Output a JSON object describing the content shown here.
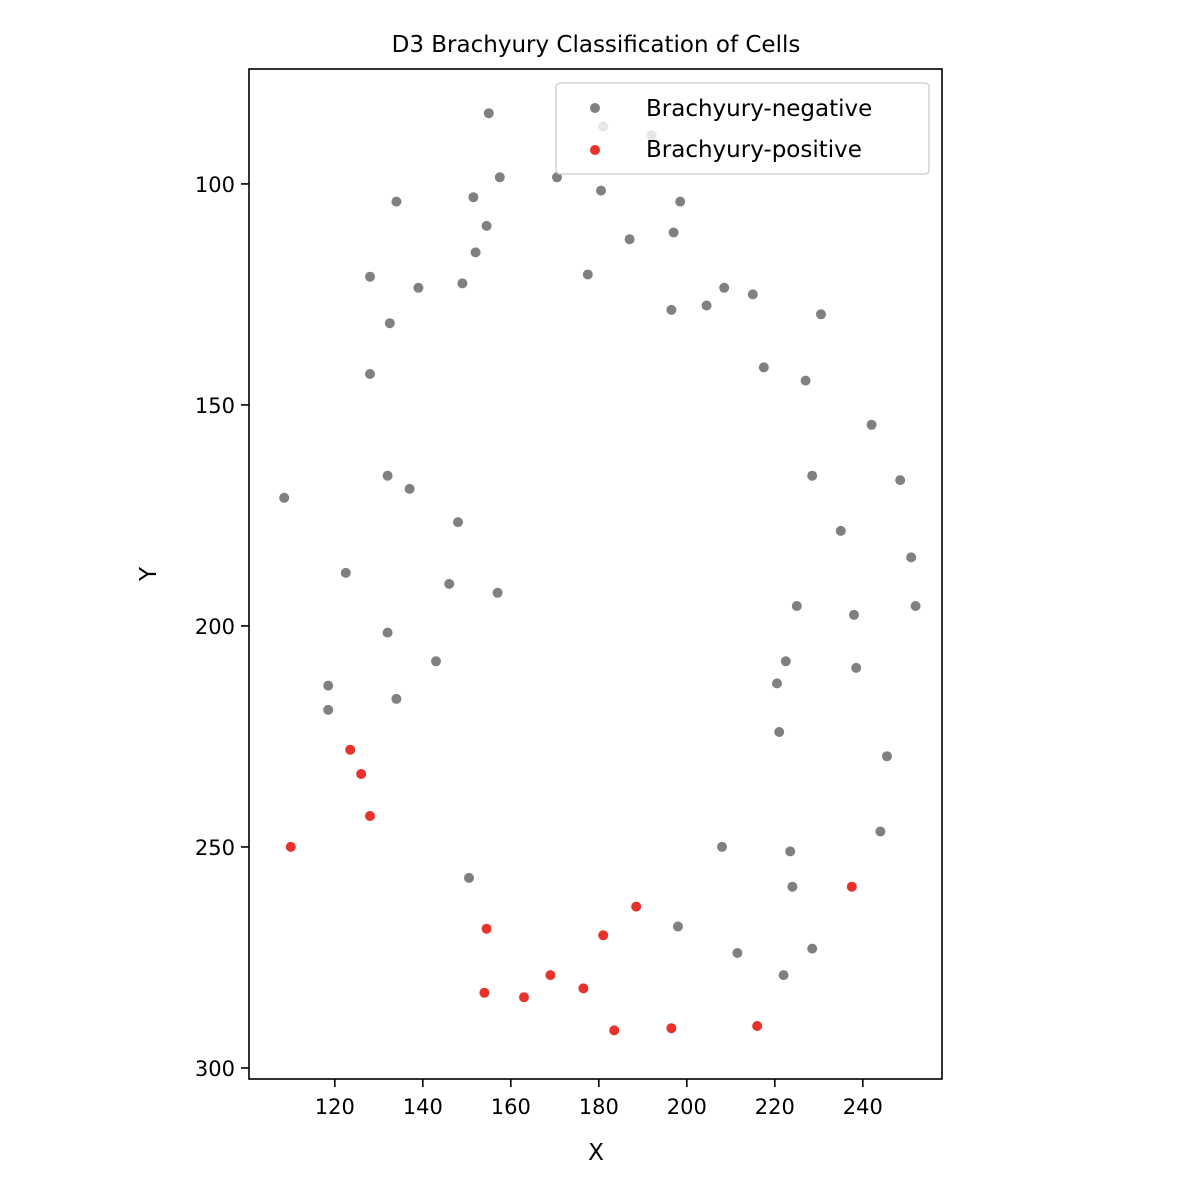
{
  "chart_data": {
    "type": "scatter",
    "title": "D3 Brachyury Classification of Cells",
    "xlabel": "X",
    "ylabel": "Y",
    "xlim": [
      100.5,
      258
    ],
    "ylim": [
      302.5,
      74
    ],
    "y_inverted": true,
    "xticks": [
      120,
      140,
      160,
      180,
      200,
      220,
      240
    ],
    "yticks": [
      100,
      150,
      200,
      250,
      300
    ],
    "grid": false,
    "legend_position": "top-right",
    "series": [
      {
        "name": "Brachyury-negative",
        "color": "#808080",
        "points": [
          [
            155,
            84
          ],
          [
            181,
            87
          ],
          [
            192,
            89
          ],
          [
            157.5,
            98.5
          ],
          [
            170.5,
            98.5
          ],
          [
            180.5,
            101.5
          ],
          [
            134,
            104
          ],
          [
            151.5,
            103
          ],
          [
            198.5,
            104
          ],
          [
            154.5,
            109.5
          ],
          [
            197,
            111
          ],
          [
            187,
            112.5
          ],
          [
            152,
            115.5
          ],
          [
            128,
            121
          ],
          [
            177.5,
            120.5
          ],
          [
            139,
            123.5
          ],
          [
            149,
            122.5
          ],
          [
            208.5,
            123.5
          ],
          [
            215,
            125
          ],
          [
            204.5,
            127.5
          ],
          [
            196.5,
            128.5
          ],
          [
            230.5,
            129.5
          ],
          [
            132.5,
            131.5
          ],
          [
            217.5,
            141.5
          ],
          [
            128,
            143
          ],
          [
            227,
            144.5
          ],
          [
            242,
            154.5
          ],
          [
            228.5,
            166
          ],
          [
            132,
            166
          ],
          [
            248.5,
            167
          ],
          [
            137,
            169
          ],
          [
            108.5,
            171
          ],
          [
            148,
            176.5
          ],
          [
            235,
            178.5
          ],
          [
            251,
            184.5
          ],
          [
            122.5,
            188
          ],
          [
            146,
            190.5
          ],
          [
            157,
            192.5
          ],
          [
            225,
            195.5
          ],
          [
            252,
            195.5
          ],
          [
            238,
            197.5
          ],
          [
            132,
            201.5
          ],
          [
            222.5,
            208
          ],
          [
            143,
            208
          ],
          [
            238.5,
            209.5
          ],
          [
            118.5,
            213.5
          ],
          [
            220.5,
            213
          ],
          [
            134,
            216.5
          ],
          [
            118.5,
            219
          ],
          [
            221,
            224
          ],
          [
            245.5,
            229.5
          ],
          [
            244,
            246.5
          ],
          [
            208,
            250
          ],
          [
            223.5,
            251
          ],
          [
            150.5,
            257
          ],
          [
            224,
            259
          ],
          [
            198,
            268
          ],
          [
            228.5,
            273
          ],
          [
            211.5,
            274
          ],
          [
            222,
            279
          ]
        ]
      },
      {
        "name": "Brachyury-positive",
        "color": "#e8312a",
        "points": [
          [
            123.5,
            228
          ],
          [
            126,
            233.5
          ],
          [
            128,
            243
          ],
          [
            110,
            250
          ],
          [
            237.5,
            259
          ],
          [
            188.5,
            263.5
          ],
          [
            154.5,
            268.5
          ],
          [
            181,
            270
          ],
          [
            169,
            279
          ],
          [
            176.5,
            282
          ],
          [
            154,
            283
          ],
          [
            163,
            284
          ],
          [
            216,
            290.5
          ],
          [
            196.5,
            291
          ],
          [
            183.5,
            291.5
          ]
        ]
      }
    ]
  }
}
